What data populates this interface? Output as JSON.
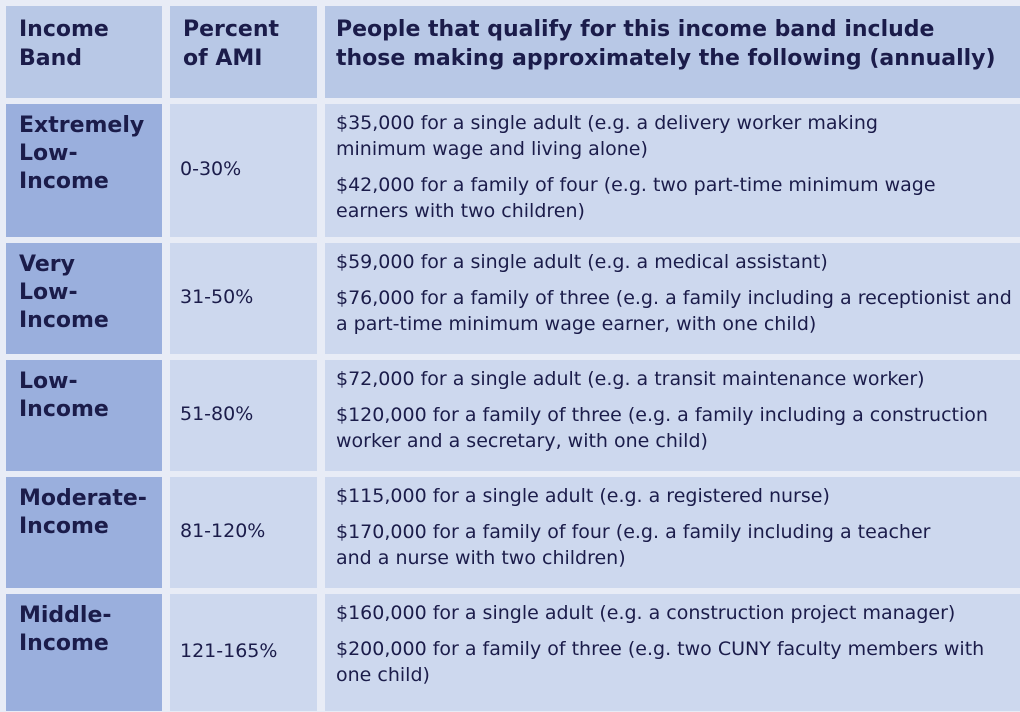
{
  "header": {
    "band": "Income Band",
    "percent": "Percent of AMI",
    "people": "People that qualify for this income band include those making approximately the following (annually)"
  },
  "rows": [
    {
      "band": "Extremely Low-Income",
      "percent": "0-30%",
      "lines": [
        "$35,000 for a single adult (e.g. a delivery worker making minimum wage and living alone)",
        "$42,000 for a family of four (e.g. two part-time minimum wage earners with two children)"
      ]
    },
    {
      "band": "Very Low-Income",
      "percent": "31-50%",
      "lines": [
        "$59,000 for a single adult (e.g. a medical assistant)",
        "$76,000 for a family of three (e.g. a family including a receptionist and a part-time minimum wage earner, with one child)"
      ]
    },
    {
      "band": "Low-Income",
      "percent": "51-80%",
      "lines": [
        "$72,000 for a single adult (e.g. a transit maintenance worker)",
        "$120,000 for a family of three (e.g. a family including a construction worker and a secretary, with one child)"
      ]
    },
    {
      "band": "Moderate-Income",
      "percent": "81-120%",
      "lines": [
        "$115,000 for a single adult (e.g. a registered nurse)",
        "$170,000 for a family of four (e.g. a family including a teacher and a nurse with two children)"
      ]
    },
    {
      "band": "Middle-Income",
      "percent": "121-165%",
      "lines": [
        "$160,000 for a single adult (e.g. a construction project manager)",
        "$200,000 for a family of three (e.g. two CUNY faculty members with one child)"
      ]
    }
  ],
  "colors": {
    "header_bg": "#b8c8e6",
    "band_bg": "#9aafdd",
    "cell_bg": "#cdd8ee",
    "text": "#1b1c4a"
  }
}
